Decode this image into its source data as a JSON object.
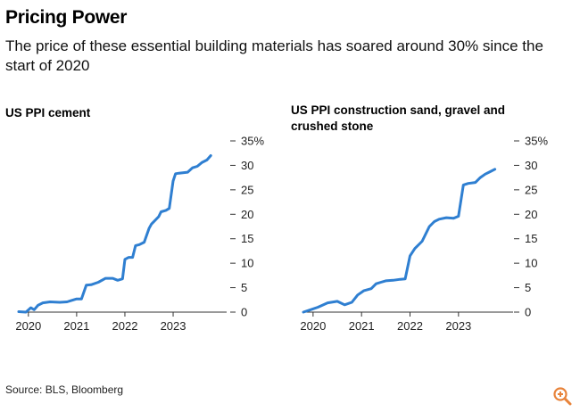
{
  "header": {
    "title": "Pricing Power",
    "subtitle": "The price of these essential building materials has soared around 30% since the start of 2020"
  },
  "footer": {
    "source": "Source: BLS, Bloomberg",
    "zoom_icon": "zoom-in-icon",
    "zoom_color": "#e8833a"
  },
  "colors": {
    "line": "#2f7fd1",
    "axis": "#333333"
  },
  "chart_data": [
    {
      "type": "line",
      "title": "US PPI cement",
      "xlabel": "",
      "ylabel": "",
      "unit": "%",
      "x_range": [
        2019.8,
        2023.85
      ],
      "ylim": [
        0,
        35
      ],
      "yticks": [
        0,
        5,
        10,
        15,
        20,
        25,
        30,
        35
      ],
      "ytick_labels": [
        "0",
        "5",
        "10",
        "15",
        "20",
        "25",
        "30",
        "35%"
      ],
      "xticks": [
        2020,
        2021,
        2022,
        2023
      ],
      "xtick_labels": [
        "2020",
        "2021",
        "2022",
        "2023"
      ],
      "series": [
        {
          "name": "US PPI cement",
          "x": [
            2019.8,
            2019.95,
            2020.05,
            2020.12,
            2020.2,
            2020.3,
            2020.45,
            2020.65,
            2020.8,
            2020.9,
            2021.0,
            2021.1,
            2021.2,
            2021.3,
            2021.45,
            2021.6,
            2021.75,
            2021.85,
            2021.95,
            2022.0,
            2022.08,
            2022.16,
            2022.22,
            2022.3,
            2022.4,
            2022.5,
            2022.55,
            2022.7,
            2022.75,
            2022.85,
            2022.92,
            2023.0,
            2023.05,
            2023.12,
            2023.3,
            2023.4,
            2023.5,
            2023.6,
            2023.7,
            2023.78
          ],
          "y": [
            0.1,
            0,
            0.9,
            0.5,
            1.4,
            1.9,
            2.1,
            2.0,
            2.1,
            2.4,
            2.7,
            2.7,
            5.5,
            5.6,
            6.1,
            6.9,
            6.9,
            6.5,
            6.8,
            10.8,
            11.2,
            11.2,
            13.6,
            13.8,
            14.3,
            17.1,
            18.0,
            19.5,
            20.5,
            20.8,
            21.2,
            26.8,
            28.3,
            28.4,
            28.6,
            29.5,
            29.8,
            30.6,
            31.1,
            32.0
          ]
        }
      ]
    },
    {
      "type": "line",
      "title": "US PPI construction sand, gravel and crushed stone",
      "xlabel": "",
      "ylabel": "",
      "unit": "%",
      "x_range": [
        2019.8,
        2023.85
      ],
      "ylim": [
        0,
        35
      ],
      "yticks": [
        0,
        5,
        10,
        15,
        20,
        25,
        30,
        35
      ],
      "ytick_labels": [
        "0",
        "5",
        "10",
        "15",
        "20",
        "25",
        "30",
        "35%"
      ],
      "xticks": [
        2020,
        2021,
        2022,
        2023
      ],
      "xtick_labels": [
        "2020",
        "2021",
        "2022",
        "2023"
      ],
      "series": [
        {
          "name": "US PPI construction sand, gravel and crushed stone",
          "x": [
            2019.8,
            2019.95,
            2020.1,
            2020.3,
            2020.5,
            2020.65,
            2020.8,
            2020.92,
            2021.05,
            2021.2,
            2021.3,
            2021.4,
            2021.5,
            2021.65,
            2021.8,
            2021.9,
            2022.0,
            2022.1,
            2022.25,
            2022.4,
            2022.5,
            2022.6,
            2022.75,
            2022.9,
            2023.0,
            2023.1,
            2023.2,
            2023.35,
            2023.45,
            2023.55,
            2023.65,
            2023.75
          ],
          "y": [
            0,
            0.5,
            1.0,
            1.9,
            2.2,
            1.5,
            2.0,
            3.5,
            4.4,
            4.8,
            5.8,
            6.1,
            6.4,
            6.5,
            6.7,
            6.8,
            11.5,
            13.0,
            14.5,
            17.5,
            18.5,
            19.0,
            19.3,
            19.2,
            19.6,
            26.0,
            26.3,
            26.5,
            27.5,
            28.2,
            28.7,
            29.2
          ]
        }
      ]
    }
  ]
}
